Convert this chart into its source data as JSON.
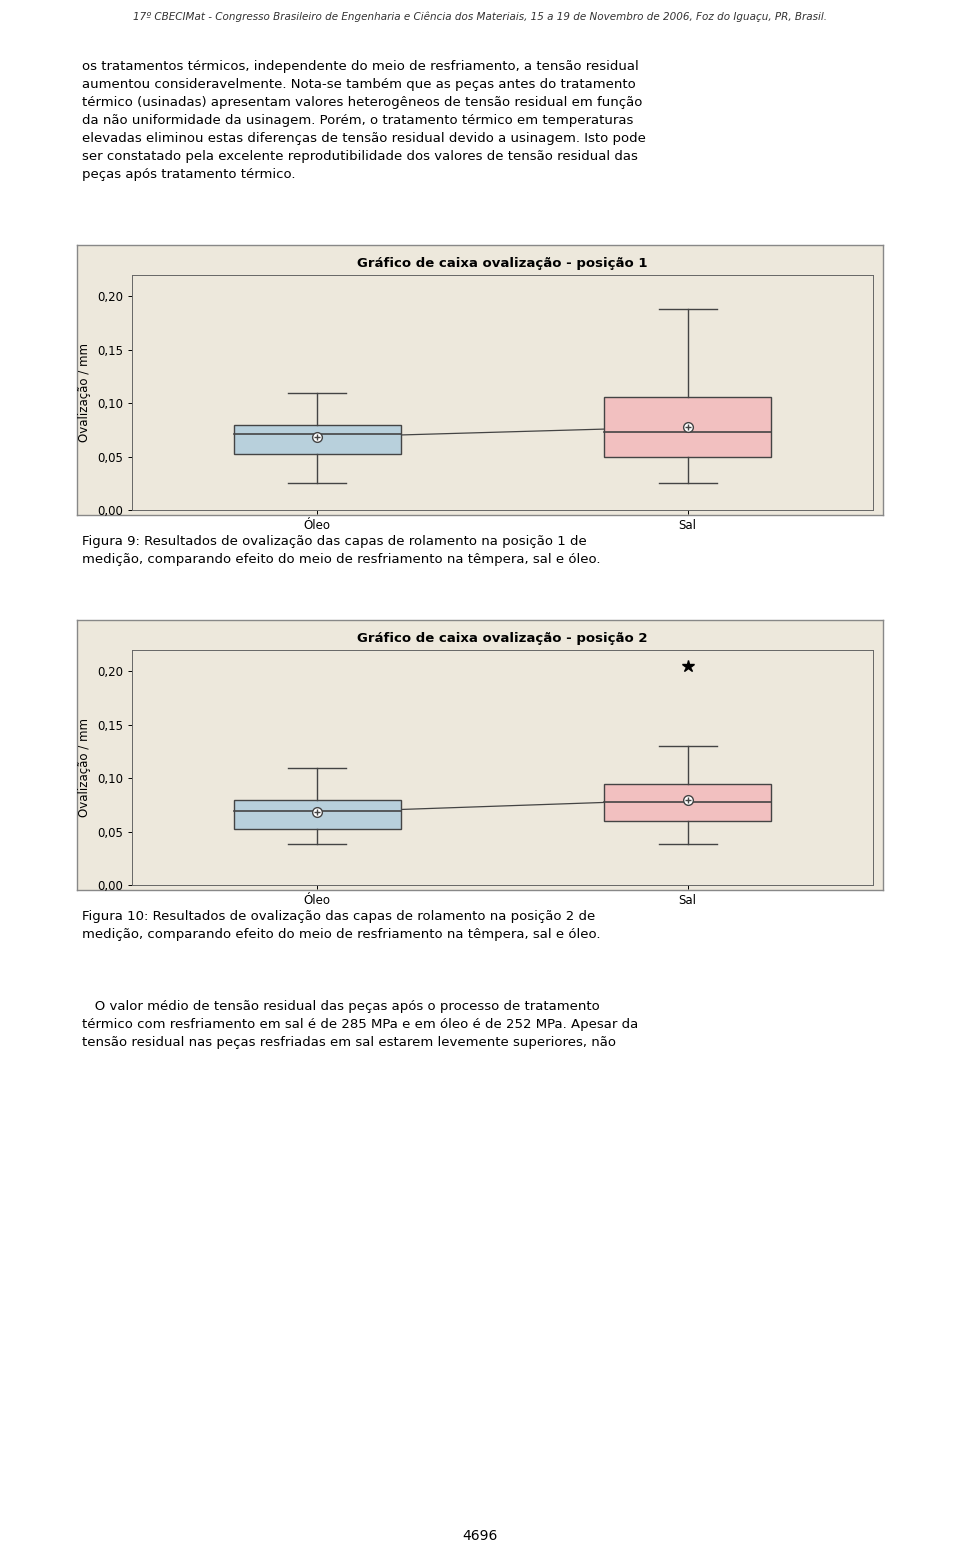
{
  "chart1": {
    "title": "Gráfico de caixa ovalização - posição 1",
    "ylabel": "Ovalização / mm",
    "categories": [
      "Óleo",
      "Sal"
    ],
    "boxes": [
      {
        "label": "Óleo",
        "color": "#b8d0dc",
        "edge_color": "#444444",
        "q1": 0.052,
        "median": 0.071,
        "q3": 0.08,
        "mean": 0.068,
        "whisker_low": 0.025,
        "whisker_high": 0.11,
        "outliers": []
      },
      {
        "label": "Sal",
        "color": "#f2c0c0",
        "edge_color": "#444444",
        "q1": 0.05,
        "median": 0.073,
        "q3": 0.106,
        "mean": 0.078,
        "whisker_low": 0.025,
        "whisker_high": 0.188,
        "outliers": []
      }
    ],
    "ylim": [
      0.0,
      0.22
    ],
    "yticks": [
      0.0,
      0.05,
      0.1,
      0.15,
      0.2
    ],
    "ytick_labels": [
      "0,00",
      "0,05",
      "0,10",
      "0,15",
      "0,20"
    ]
  },
  "chart2": {
    "title": "Gráfico de caixa ovalização - posição 2",
    "ylabel": "Ovalização / mm",
    "categories": [
      "Óleo",
      "Sal"
    ],
    "boxes": [
      {
        "label": "Óleo",
        "color": "#b8d0dc",
        "edge_color": "#444444",
        "q1": 0.052,
        "median": 0.069,
        "q3": 0.08,
        "mean": 0.068,
        "whisker_low": 0.038,
        "whisker_high": 0.11,
        "outliers": []
      },
      {
        "label": "Sal",
        "color": "#f2c0c0",
        "edge_color": "#444444",
        "q1": 0.06,
        "median": 0.078,
        "q3": 0.095,
        "mean": 0.08,
        "whisker_low": 0.038,
        "whisker_high": 0.13,
        "outliers": [
          0.205
        ]
      }
    ],
    "ylim": [
      0.0,
      0.22
    ],
    "yticks": [
      0.0,
      0.05,
      0.1,
      0.15,
      0.2
    ],
    "ytick_labels": [
      "0,00",
      "0,05",
      "0,10",
      "0,15",
      "0,20"
    ]
  },
  "plot_bg_color": "#ede8dc",
  "header_text": "17º CBECIMat - Congresso Brasileiro de Engenharia e Ciência dos Materiais, 15 a 19 de Novembro de 2006, Foz do Iguaçu, PR, Brasil.",
  "body1_lines": [
    "os tratamentos térmicos, independente do meio de resfriamento, a tensão residual",
    "aumentou consideravelmente. Nota-se também que as peças antes do tratamento",
    "térmico (usinadas) apresentam valores heterogêneos de tensão residual em função",
    "da não uniformidade da usinagem. Porém, o tratamento térmico em temperaturas",
    "elevadas eliminou estas diferenças de tensão residual devido a usinagem. Isto pode",
    "ser constatado pela excelente reprodutibilidade dos valores de tensão residual das",
    "peças após tratamento térmico."
  ],
  "caption1_lines": [
    "Figura 9: Resultados de ovalização das capas de rolamento na posição 1 de",
    "medição, comparando efeito do meio de resfriamento na têmpera, sal e óleo."
  ],
  "caption2_lines": [
    "Figura 10: Resultados de ovalização das capas de rolamento na posição 2 de",
    "medição, comparando efeito do meio de resfriamento na têmpera, sal e óleo."
  ],
  "body2_lines": [
    "   O valor médio de tensão residual das peças após o processo de tratamento",
    "térmico com resfriamento em sal é de 285 MPa e em óleo é de 252 MPa. Apesar da",
    "tensão residual nas peças resfriadas em sal estarem levemente superiores, não"
  ],
  "page_number": "4696"
}
